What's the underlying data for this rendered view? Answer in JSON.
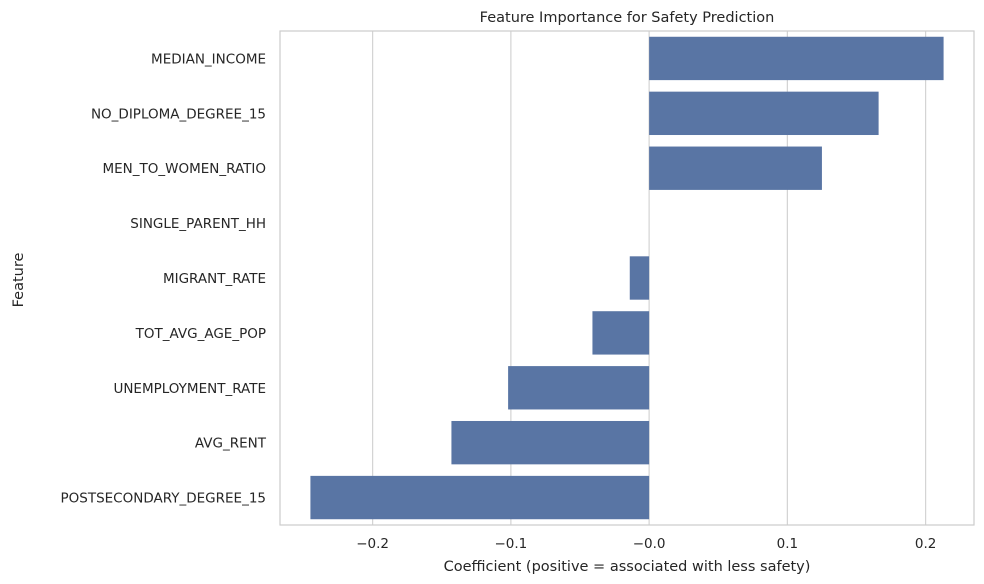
{
  "chart_data": {
    "type": "bar",
    "orientation": "horizontal",
    "title": "Feature Importance for Safety Prediction",
    "xlabel": "Coefficient (positive = associated with less safety)",
    "ylabel": "Feature",
    "categories": [
      "MEDIAN_INCOME",
      "NO_DIPLOMA_DEGREE_15",
      "MEN_TO_WOMEN_RATIO",
      "SINGLE_PARENT_HH",
      "MIGRANT_RATE",
      "TOT_AVG_AGE_POP",
      "UNEMPLOYMENT_RATE",
      "AVG_RENT",
      "POSTSECONDARY_DEGREE_15"
    ],
    "values": [
      0.213,
      0.166,
      0.125,
      0.0,
      -0.014,
      -0.041,
      -0.102,
      -0.143,
      -0.245
    ],
    "xlim": [
      -0.267,
      0.235
    ],
    "xticks": [
      -0.2,
      -0.1,
      0.0,
      0.1,
      0.2
    ],
    "xtick_labels": [
      "−0.2",
      "−0.1",
      "−0.0",
      "0.1",
      "0.2"
    ],
    "grid": true,
    "bar_color": "#5975a4",
    "grid_color": "#d3d3d3",
    "frame_color": "#cccccc"
  }
}
